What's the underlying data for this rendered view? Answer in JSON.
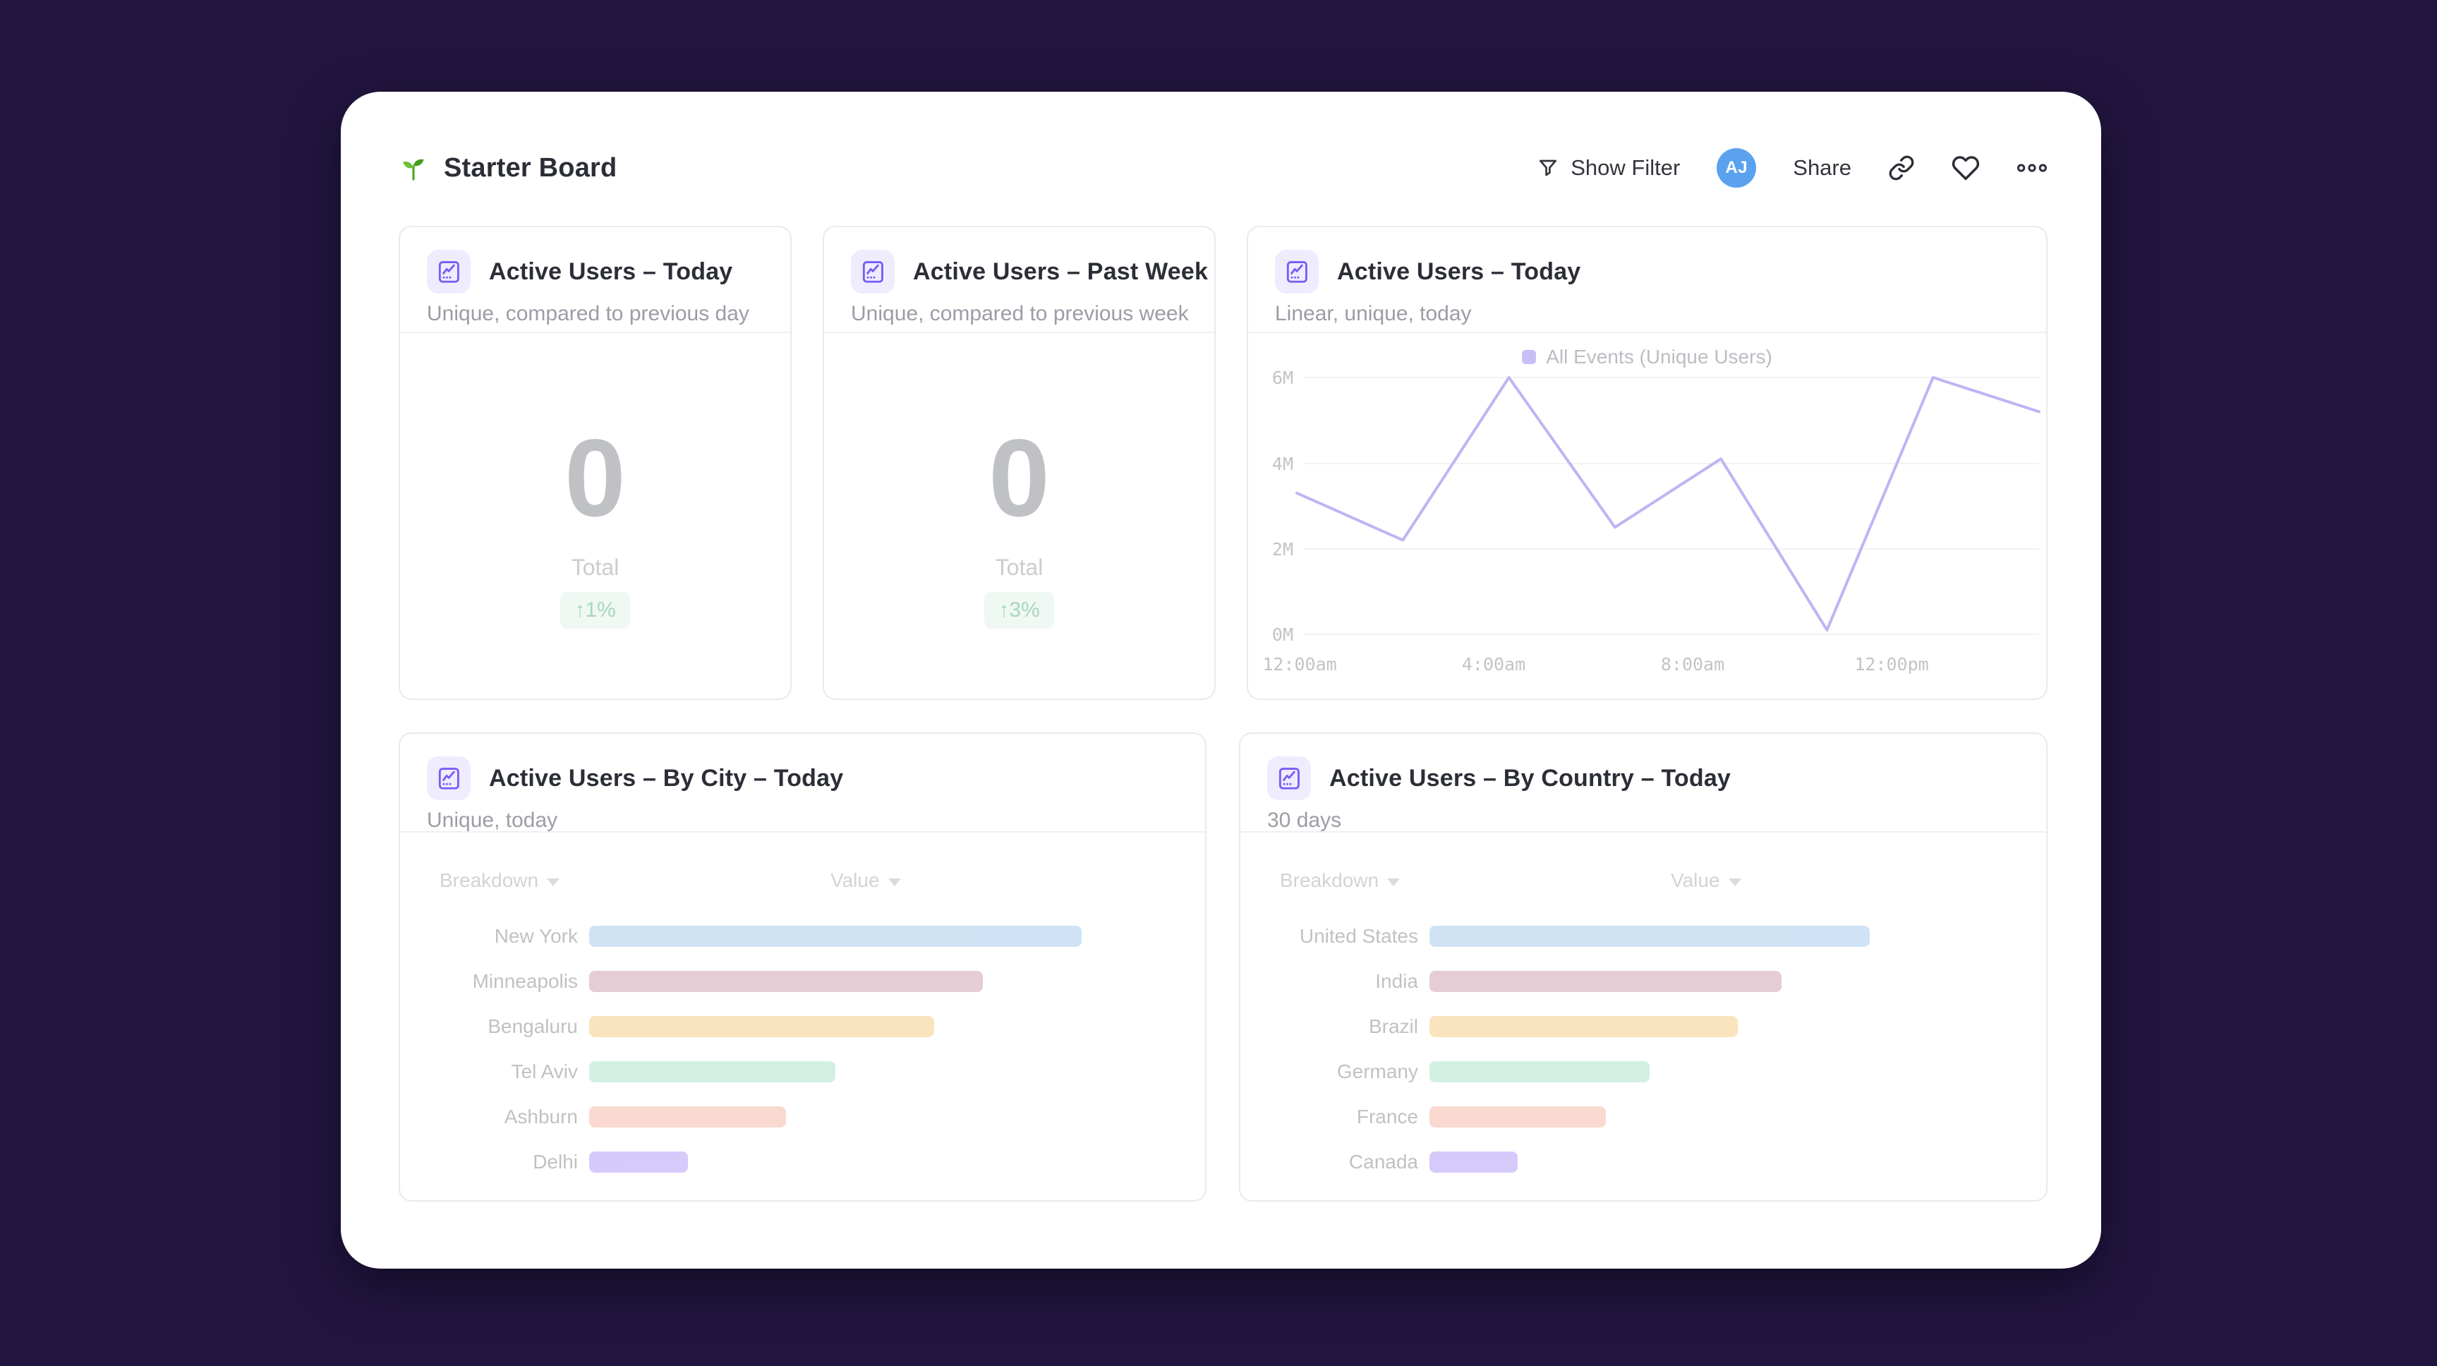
{
  "page": {
    "background_color": "#221540",
    "board_background": "#ffffff",
    "faded_content_opacity": 0.42,
    "accent_purple": "#7b5bf7"
  },
  "header": {
    "title": "Starter Board",
    "title_icon": "sprout-icon",
    "show_filter_label": "Show Filter",
    "avatar_initials": "AJ",
    "avatar_color": "#5aa2f0",
    "share_label": "Share"
  },
  "cards": {
    "today": {
      "title": "Active Users – Today",
      "subtitle": "Unique, compared to previous day",
      "value": "0",
      "value_label": "Total",
      "delta": "↑1%",
      "delta_color": "#2f9e68",
      "delta_bg": "#ddefe5"
    },
    "past_week": {
      "title": "Active Users – Past Week",
      "subtitle": "Unique, compared to previous week",
      "value": "0",
      "value_label": "Total",
      "delta": "↑3%",
      "delta_color": "#2f9e68",
      "delta_bg": "#ddefe5"
    },
    "today_linear": {
      "title": "Active Users – Today",
      "subtitle": "Linear, unique, today",
      "legend": "All Events (Unique Users)",
      "line_color": "#6550e6",
      "legend_swatch_color": "#7e68ea"
    },
    "by_city": {
      "title": "Active Users – By City – Today",
      "subtitle": "Unique, today",
      "columns": {
        "breakdown": "Breakdown",
        "value": "Value"
      }
    },
    "by_country": {
      "title": "Active Users – By Country – Today",
      "subtitle": "30 days",
      "columns": {
        "breakdown": "Breakdown",
        "value": "Value"
      }
    }
  },
  "chart_data": [
    {
      "type": "line",
      "title": "Active Users – Today",
      "subtitle": "Linear, unique, today",
      "legend": [
        "All Events (Unique Users)"
      ],
      "legend_position": "top-center",
      "grid": true,
      "xlabel": "",
      "ylabel": "",
      "x_tick_labels": [
        "12:00am",
        "4:00am",
        "8:00am",
        "12:00pm"
      ],
      "y_tick_labels": [
        "0M",
        "2M",
        "4M",
        "6M"
      ],
      "ylim": [
        0,
        6
      ],
      "y_unit": "millions of unique users",
      "x_hours_estimated": [
        0,
        2.1,
        4.3,
        6.4,
        8.6,
        10.7,
        12.9,
        15
      ],
      "values_millions": [
        3.3,
        2.2,
        6.0,
        2.5,
        4.1,
        0.1,
        6.0,
        5.2
      ],
      "line_color": "#6550e6"
    },
    {
      "type": "bar",
      "orientation": "horizontal",
      "title": "Active Users – By City – Today",
      "columns": [
        "Breakdown",
        "Value"
      ],
      "categories": [
        "New York",
        "Minneapolis",
        "Bengaluru",
        "Tel Aviv",
        "Ashburn",
        "Delhi"
      ],
      "values_relative": [
        1.0,
        0.8,
        0.7,
        0.5,
        0.4,
        0.2
      ],
      "bar_colors": [
        "#8fbde9",
        "#c2889d",
        "#f2c063",
        "#96dcba",
        "#f4a592",
        "#9d82f2"
      ]
    },
    {
      "type": "bar",
      "orientation": "horizontal",
      "title": "Active Users – By Country – Today",
      "columns": [
        "Breakdown",
        "Value"
      ],
      "categories": [
        "United States",
        "India",
        "Brazil",
        "Germany",
        "France",
        "Canada"
      ],
      "values_relative": [
        1.0,
        0.8,
        0.7,
        0.5,
        0.4,
        0.2
      ],
      "bar_colors": [
        "#8fbde9",
        "#c2889d",
        "#f2c063",
        "#96dcba",
        "#f4a592",
        "#9d82f2"
      ]
    }
  ]
}
